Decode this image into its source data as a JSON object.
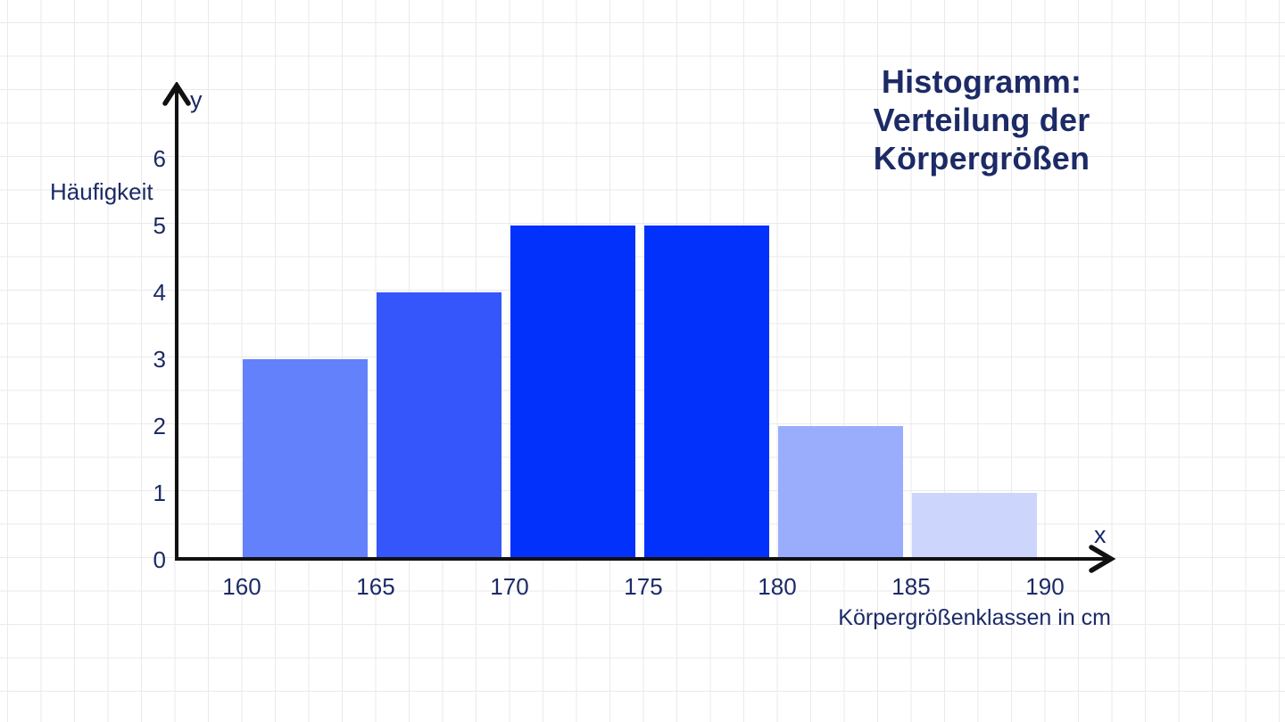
{
  "page": {
    "background_color": "#ffffff",
    "grid_color": "#eaeaea",
    "text_color": "#1c2a66",
    "axis_color": "#111111"
  },
  "title": {
    "lines": [
      "Histogramm:",
      "Verteilung der",
      "Körpergrößen"
    ]
  },
  "chart_data": {
    "type": "bar",
    "subtype": "histogram",
    "title": "Histogramm: Verteilung der Körpergrößen",
    "xlabel": "Körpergrößenklassen in cm",
    "ylabel": "Häufigkeit",
    "x_axis_letter": "x",
    "y_axis_letter": "y",
    "bins": [
      {
        "from": 160,
        "to": 165,
        "value": 3,
        "color": "#6381fb"
      },
      {
        "from": 165,
        "to": 170,
        "value": 4,
        "color": "#3556fb"
      },
      {
        "from": 170,
        "to": 175,
        "value": 5,
        "color": "#0331fc"
      },
      {
        "from": 175,
        "to": 180,
        "value": 5,
        "color": "#0331fc"
      },
      {
        "from": 180,
        "to": 185,
        "value": 2,
        "color": "#99adfc"
      },
      {
        "from": 185,
        "to": 190,
        "value": 1,
        "color": "#ccd5fc"
      }
    ],
    "x_ticks": [
      160,
      165,
      170,
      175,
      180,
      185,
      190
    ],
    "y_ticks": [
      0,
      1,
      2,
      3,
      4,
      5,
      6
    ],
    "ylim": [
      0,
      6
    ],
    "grid": true,
    "legend": "none"
  }
}
